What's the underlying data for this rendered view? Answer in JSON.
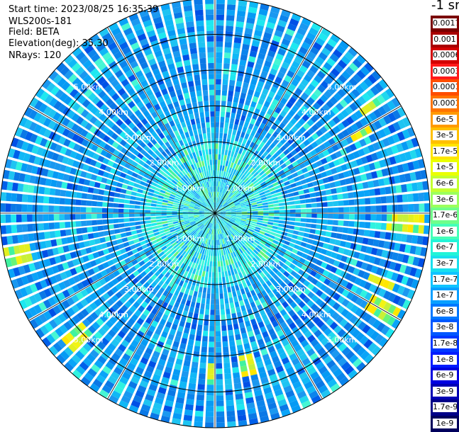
{
  "info": {
    "start_time": "Start time: 2023/08/25 16:35:39",
    "device": "WLS200s-181",
    "field": "Field: BETA",
    "elevation": "Elevation(deg): 35.30",
    "nrays": "NRays: 120"
  },
  "colorbar": {
    "unit": "-1 sr",
    "labels": [
      "0.0017",
      "0.001",
      "0.0006",
      "0.0003",
      "0.00017",
      "0.0001",
      "6e-5",
      "3e-5",
      "1.7e-5",
      "1e-5",
      "6e-6",
      "3e-6",
      "1.7e-6",
      "1e-6",
      "6e-7",
      "3e-7",
      "1.7e-7",
      "1e-7",
      "6e-8",
      "3e-8",
      "1.7e-8",
      "1e-8",
      "6e-9",
      "3e-9",
      "1.7e-9",
      "1e-9"
    ],
    "colors": [
      "#7a0000",
      "#a80000",
      "#d40000",
      "#ff1a1a",
      "#ff4d00",
      "#ff7400",
      "#ff9a00",
      "#ffc000",
      "#ffe400",
      "#eaff00",
      "#c4ff30",
      "#9cff5c",
      "#6fff8a",
      "#45ffb8",
      "#22f4d8",
      "#1ae0ee",
      "#10c4ff",
      "#0aa0ff",
      "#0078ff",
      "#0058ff",
      "#0038ff",
      "#001cff",
      "#0000e0",
      "#0000b4",
      "#000088",
      "#00005c"
    ]
  },
  "chart_data": {
    "type": "heatmap",
    "projection": "polar",
    "field": "BETA",
    "nrays": 120,
    "elevation_deg": 35.3,
    "range_unit": "km",
    "max_range_km": 6.0,
    "range_rings_km": [
      1,
      2,
      3,
      4,
      5,
      6
    ],
    "ring_labels": [
      "1.00km",
      "2.00km",
      "3.00km",
      "4.00km",
      "5.00km"
    ],
    "ring_label_positions": [
      "top-left",
      "top-right",
      "bottom-left",
      "bottom-right"
    ],
    "spokes_deg": [
      0,
      30,
      60,
      90,
      120,
      150,
      180,
      210,
      240,
      270,
      300,
      330
    ],
    "zones": [
      {
        "range_km": [
          0,
          2
        ],
        "dominant_beta": "1.7e-7"
      },
      {
        "range_km": [
          2,
          6
        ],
        "dominant_beta": "1e-7"
      }
    ],
    "hotspots": [
      {
        "azimuth_deg": 55,
        "range_km": [
          5.0,
          5.6
        ],
        "beta": "1e-5"
      },
      {
        "azimuth_deg": 62,
        "range_km": [
          4.4,
          5.0
        ],
        "beta": "1e-5"
      },
      {
        "azimuth_deg": 93,
        "range_km": [
          4.8,
          5.9
        ],
        "beta": "1e-5"
      },
      {
        "azimuth_deg": 113,
        "range_km": [
          4.6,
          5.4
        ],
        "beta": "1e-5"
      },
      {
        "azimuth_deg": 120,
        "range_km": [
          4.9,
          5.9
        ],
        "beta": "1e-5"
      },
      {
        "azimuth_deg": 168,
        "range_km": [
          4.0,
          4.6
        ],
        "beta": "1e-5"
      },
      {
        "azimuth_deg": 182,
        "range_km": [
          4.2,
          4.8
        ],
        "beta": "1e-5"
      },
      {
        "azimuth_deg": 228,
        "range_km": [
          4.8,
          5.6
        ],
        "beta": "1e-5"
      },
      {
        "azimuth_deg": 258,
        "range_km": [
          5.2,
          6.0
        ],
        "beta": "1e-5"
      }
    ]
  }
}
